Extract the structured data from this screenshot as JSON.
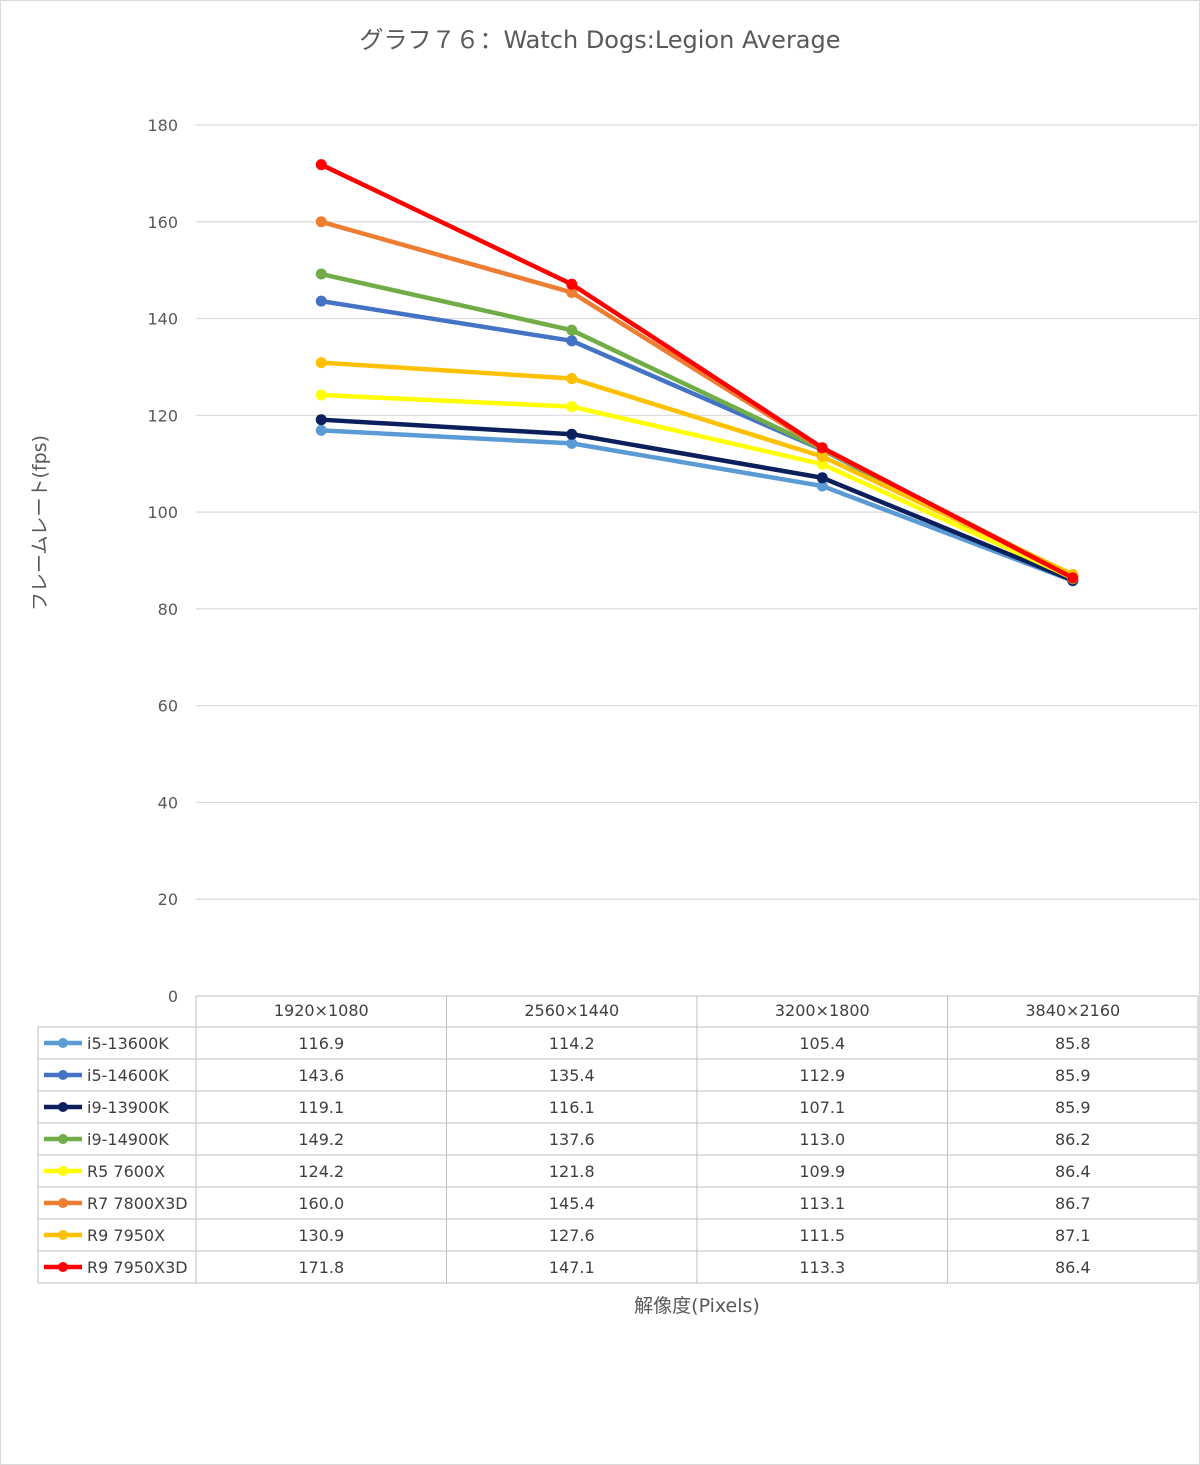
{
  "chart_data": {
    "type": "line",
    "title": "グラフ７６：Watch Dogs:Legion Average",
    "xlabel": "解像度(Pixels)",
    "ylabel": "フレームレート(fps)",
    "ylim": [
      0,
      180
    ],
    "yticks": [
      0,
      20,
      40,
      60,
      80,
      100,
      120,
      140,
      160,
      180
    ],
    "grid": true,
    "legend": "data-table",
    "categories": [
      "1920×1080",
      "2560×1440",
      "3200×1800",
      "3840×2160"
    ],
    "series": [
      {
        "name": "i5-13600K",
        "color": "#5B9BD5",
        "values": [
          116.9,
          114.2,
          105.4,
          85.8
        ],
        "labels": [
          "116.9",
          "114.2",
          "105.4",
          "85.8"
        ]
      },
      {
        "name": "i5-14600K",
        "color": "#4472C4",
        "values": [
          143.6,
          135.4,
          112.9,
          85.9
        ],
        "labels": [
          "143.6",
          "135.4",
          "112.9",
          "85.9"
        ]
      },
      {
        "name": "i9-13900K",
        "color": "#0B1F5C",
        "values": [
          119.1,
          116.1,
          107.1,
          85.9
        ],
        "labels": [
          "119.1",
          "116.1",
          "107.1",
          "85.9"
        ]
      },
      {
        "name": "i9-14900K",
        "color": "#70AD47",
        "values": [
          149.2,
          137.6,
          113.0,
          86.2
        ],
        "labels": [
          "149.2",
          "137.6",
          "113.0",
          "86.2"
        ]
      },
      {
        "name": "R5 7600X",
        "color": "#FFFF00",
        "values": [
          124.2,
          121.8,
          109.9,
          86.4
        ],
        "labels": [
          "124.2",
          "121.8",
          "109.9",
          "86.4"
        ]
      },
      {
        "name": "R7 7800X3D",
        "color": "#ED7D31",
        "values": [
          160.0,
          145.4,
          113.1,
          86.7
        ],
        "labels": [
          "160.0",
          "145.4",
          "113.1",
          "86.7"
        ]
      },
      {
        "name": "R9 7950X",
        "color": "#FFC000",
        "values": [
          130.9,
          127.6,
          111.5,
          87.1
        ],
        "labels": [
          "130.9",
          "127.6",
          "111.5",
          "87.1"
        ]
      },
      {
        "name": "R9 7950X3D",
        "color": "#FF0000",
        "values": [
          171.8,
          147.1,
          113.3,
          86.4
        ],
        "labels": [
          "171.8",
          "147.1",
          "113.3",
          "86.4"
        ]
      }
    ]
  }
}
